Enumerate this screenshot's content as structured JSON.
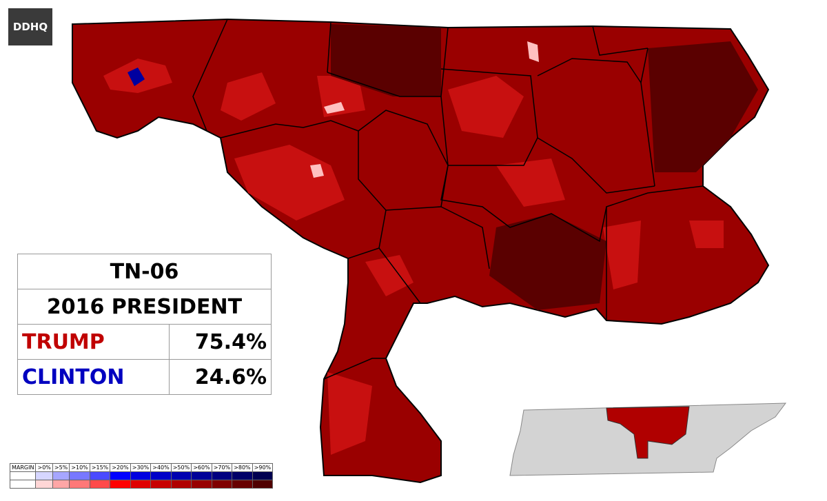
{
  "logo": {
    "text": "DDHQ"
  },
  "results": {
    "district": "TN-06",
    "race": "2016 PRESIDENT",
    "rows": [
      {
        "name": "TRUMP",
        "share": "75.4%",
        "color": "#c00000"
      },
      {
        "name": "CLINTON",
        "share": "24.6%",
        "color": "#0000c0"
      }
    ]
  },
  "legend": {
    "title": "MARGIN",
    "steps": [
      ">0%",
      ">5%",
      ">10%",
      ">15%",
      ">20%",
      ">30%",
      ">40%",
      ">50%",
      ">60%",
      ">70%",
      ">80%",
      ">90%"
    ],
    "blue_colors": [
      "#d6d6ff",
      "#a6a6ff",
      "#7878ff",
      "#4a4aff",
      "#0000ff",
      "#0000e0",
      "#0000c8",
      "#0000b0",
      "#000098",
      "#000080",
      "#000068",
      "#000050"
    ],
    "red_colors": [
      "#ffd6d6",
      "#ffa6a6",
      "#ff7878",
      "#ff4a4a",
      "#ff0000",
      "#e00000",
      "#c80000",
      "#b00000",
      "#980000",
      "#800000",
      "#680000",
      "#500000"
    ]
  }
}
